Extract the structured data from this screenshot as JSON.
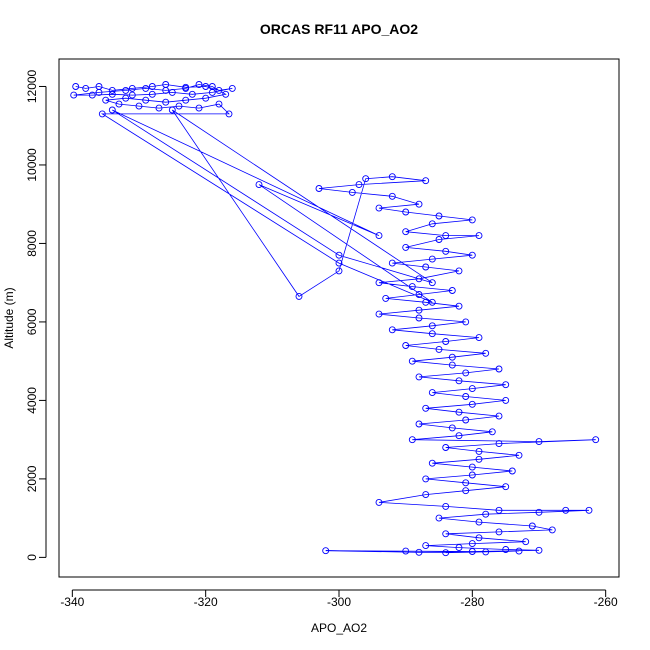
{
  "chart_data": {
    "type": "scatter",
    "title": "ORCAS RF11 APO_AO2",
    "xlabel": "APO_AO2",
    "ylabel": "Altitude (m)",
    "xlim": [
      -342,
      -258
    ],
    "ylim": [
      -500,
      12700
    ],
    "xticks": [
      -340,
      -320,
      -300,
      -280,
      -260
    ],
    "yticks": [
      0,
      2000,
      4000,
      6000,
      8000,
      10000,
      12000
    ],
    "grid": false,
    "legend": "none",
    "connected": true,
    "series": [
      {
        "color": "#0000ff",
        "marker": "open-circle",
        "points": [
          [
            -339.5,
            12000
          ],
          [
            -338,
            11950
          ],
          [
            -336,
            12000
          ],
          [
            -334,
            11900
          ],
          [
            -331,
            11950
          ],
          [
            -328,
            12000
          ],
          [
            -326,
            12050
          ],
          [
            -323,
            11980
          ],
          [
            -320,
            12000
          ],
          [
            -318,
            11900
          ],
          [
            -316,
            11950
          ],
          [
            -319,
            11850
          ],
          [
            -322,
            11800
          ],
          [
            -325,
            11850
          ],
          [
            -328,
            11800
          ],
          [
            -331,
            11780
          ],
          [
            -334,
            11800
          ],
          [
            -337,
            11780
          ],
          [
            -339.8,
            11780
          ],
          [
            -336,
            11850
          ],
          [
            -332,
            11900
          ],
          [
            -329,
            11950
          ],
          [
            -326,
            11900
          ],
          [
            -323,
            11950
          ],
          [
            -321,
            12050
          ],
          [
            -319,
            12000
          ],
          [
            -317,
            11800
          ],
          [
            -320,
            11700
          ],
          [
            -323,
            11650
          ],
          [
            -326,
            11600
          ],
          [
            -329,
            11650
          ],
          [
            -332,
            11700
          ],
          [
            -335,
            11650
          ],
          [
            -333,
            11550
          ],
          [
            -330,
            11500
          ],
          [
            -327,
            11450
          ],
          [
            -324,
            11500
          ],
          [
            -321,
            11450
          ],
          [
            -318,
            11550
          ],
          [
            -316.5,
            11300
          ],
          [
            -335.5,
            11300
          ],
          [
            -300,
            7500
          ],
          [
            -286,
            6500
          ],
          [
            -312,
            9500
          ],
          [
            -294,
            8200
          ],
          [
            -334,
            11400
          ],
          [
            -300,
            7700
          ],
          [
            -286,
            7000
          ],
          [
            -325,
            11400
          ],
          [
            -306,
            6650
          ],
          [
            -300,
            7300
          ],
          [
            -296,
            9650
          ],
          [
            -292,
            9700
          ],
          [
            -287,
            9600
          ],
          [
            -297,
            9500
          ],
          [
            -303,
            9400
          ],
          [
            -298,
            9300
          ],
          [
            -292,
            9200
          ],
          [
            -288,
            9000
          ],
          [
            -294,
            8900
          ],
          [
            -290,
            8800
          ],
          [
            -285,
            8700
          ],
          [
            -280,
            8600
          ],
          [
            -286,
            8500
          ],
          [
            -290,
            8300
          ],
          [
            -284,
            8200
          ],
          [
            -279,
            8200
          ],
          [
            -285,
            8100
          ],
          [
            -290,
            7900
          ],
          [
            -284,
            7800
          ],
          [
            -280,
            7700
          ],
          [
            -286,
            7600
          ],
          [
            -292,
            7500
          ],
          [
            -287,
            7400
          ],
          [
            -282,
            7300
          ],
          [
            -288,
            7100
          ],
          [
            -294,
            7000
          ],
          [
            -289,
            6900
          ],
          [
            -283,
            6800
          ],
          [
            -288,
            6700
          ],
          [
            -293,
            6600
          ],
          [
            -287,
            6500
          ],
          [
            -282,
            6400
          ],
          [
            -288,
            6300
          ],
          [
            -294,
            6200
          ],
          [
            -288,
            6100
          ],
          [
            -281,
            6000
          ],
          [
            -286,
            5900
          ],
          [
            -292,
            5800
          ],
          [
            -286,
            5700
          ],
          [
            -279,
            5600
          ],
          [
            -284,
            5500
          ],
          [
            -290,
            5400
          ],
          [
            -285,
            5300
          ],
          [
            -278,
            5200
          ],
          [
            -283,
            5100
          ],
          [
            -289,
            5000
          ],
          [
            -283,
            4900
          ],
          [
            -276,
            4800
          ],
          [
            -281,
            4700
          ],
          [
            -288,
            4600
          ],
          [
            -282,
            4500
          ],
          [
            -275,
            4400
          ],
          [
            -280,
            4300
          ],
          [
            -286,
            4200
          ],
          [
            -281,
            4100
          ],
          [
            -275,
            4000
          ],
          [
            -280,
            3900
          ],
          [
            -287,
            3800
          ],
          [
            -282,
            3700
          ],
          [
            -276,
            3600
          ],
          [
            -281,
            3500
          ],
          [
            -288,
            3400
          ],
          [
            -283,
            3300
          ],
          [
            -277,
            3200
          ],
          [
            -282,
            3100
          ],
          [
            -289,
            3000
          ],
          [
            -270,
            2950
          ],
          [
            -261.5,
            3000
          ],
          [
            -276,
            2900
          ],
          [
            -284,
            2800
          ],
          [
            -279,
            2700
          ],
          [
            -273,
            2600
          ],
          [
            -279,
            2500
          ],
          [
            -286,
            2400
          ],
          [
            -280,
            2300
          ],
          [
            -274,
            2200
          ],
          [
            -280,
            2100
          ],
          [
            -287,
            2000
          ],
          [
            -281,
            1900
          ],
          [
            -275,
            1800
          ],
          [
            -281,
            1700
          ],
          [
            -287,
            1600
          ],
          [
            -294,
            1400
          ],
          [
            -284,
            1300
          ],
          [
            -276,
            1200
          ],
          [
            -266,
            1200
          ],
          [
            -262.5,
            1200
          ],
          [
            -270,
            1150
          ],
          [
            -278,
            1100
          ],
          [
            -285,
            1000
          ],
          [
            -279,
            900
          ],
          [
            -271,
            800
          ],
          [
            -268,
            700
          ],
          [
            -276,
            650
          ],
          [
            -284,
            600
          ],
          [
            -279,
            500
          ],
          [
            -272,
            400
          ],
          [
            -280,
            350
          ],
          [
            -287,
            300
          ],
          [
            -282,
            250
          ],
          [
            -275,
            200
          ],
          [
            -270,
            180
          ],
          [
            -280,
            150
          ],
          [
            -290,
            160
          ],
          [
            -302,
            170
          ],
          [
            -288,
            130
          ],
          [
            -278,
            140
          ],
          [
            -284,
            120
          ],
          [
            -273,
            160
          ]
        ]
      }
    ]
  }
}
